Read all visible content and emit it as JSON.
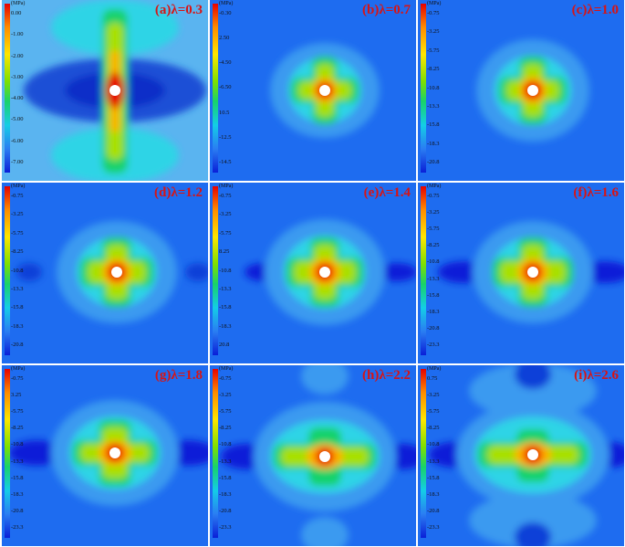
{
  "colorbar_unit": "(MPa)",
  "colors": {
    "background": "#1e6cf0",
    "low": "#0a1fd8",
    "high": "#e60000",
    "label": "#d81414"
  },
  "panels": [
    {
      "label": "(a)λ=0.3",
      "ticks": [
        "0.00",
        "-1.00",
        "-2.00",
        "-3.00",
        "-4.00",
        "-5.00",
        "-6.00",
        "-7.00"
      ]
    },
    {
      "label": "(b)λ=0.7",
      "ticks": [
        "-0.30",
        "2.50",
        "-4.50",
        "-6.50",
        "10.5",
        "-12.5",
        "-14.5"
      ]
    },
    {
      "label": "(c)λ=1.0",
      "ticks": [
        "-0.75",
        "-3.25",
        "-5.75",
        "-8.25",
        "-10.8",
        "-13.3",
        "-15.8",
        "-18.3",
        "-20.8"
      ]
    },
    {
      "label": "(d)λ=1.2",
      "ticks": [
        "-0.75",
        "-3.25",
        "-5.75",
        "-8.25",
        "-10.8",
        "-13.3",
        "-15.8",
        "-18.3",
        "-20.8"
      ]
    },
    {
      "label": "(e)λ=1.4",
      "ticks": [
        "-0.75",
        "-3.25",
        "-5.75",
        "8.25",
        "-10.8",
        "-13.3",
        "-15.8",
        "-18.3",
        "20.8"
      ]
    },
    {
      "label": "(f)λ=1.6",
      "ticks": [
        "-0.75",
        "-3.25",
        "-5.75",
        "-8.25",
        "-10.8",
        "-13.3",
        "-15.8",
        "-18.3",
        "-20.8",
        "-23.3"
      ]
    },
    {
      "label": "(g)λ=1.8",
      "ticks": [
        "-0.75",
        "3.25",
        "-5.75",
        "-8.25",
        "-10.8",
        "-13.3",
        "-15.8",
        "-18.3",
        "-20.8",
        "-23.3"
      ]
    },
    {
      "label": "(h)λ=2.2",
      "ticks": [
        "-0.75",
        "-3.25",
        "-5.75",
        "-8.25",
        "-10.8",
        "-13.3",
        "-15.8",
        "-18.3",
        "-20.8",
        "-23.3"
      ]
    },
    {
      "label": "(i)λ=2.6",
      "ticks": [
        "0.75",
        "-3.25",
        "-5.75",
        "-8.25",
        "-10.8",
        "-13.3",
        "-15.8",
        "-18.3",
        "-20.8",
        "-23.3"
      ]
    }
  ]
}
